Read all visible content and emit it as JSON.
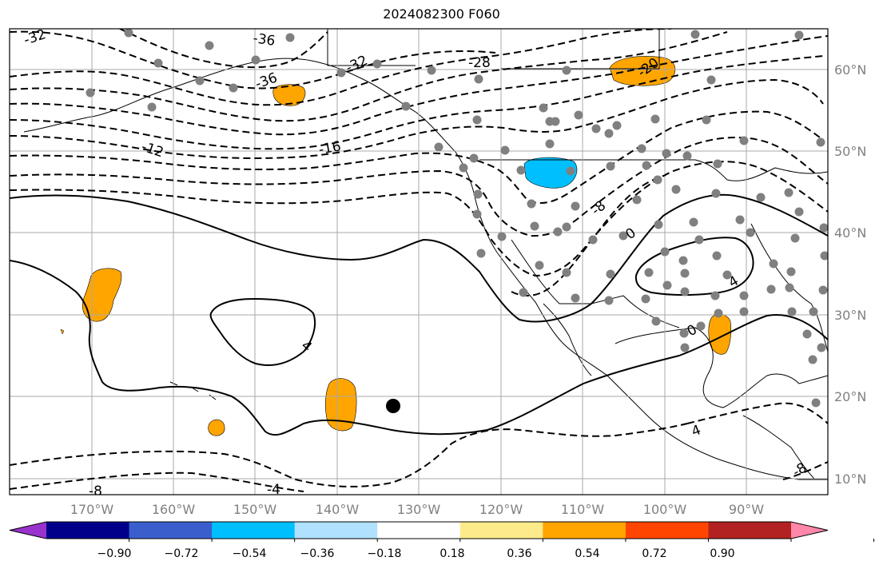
{
  "title": "2024082300 F060",
  "map": {
    "lon_labels": [
      "170°W",
      "160°W",
      "150°W",
      "140°W",
      "130°W",
      "120°W",
      "110°W",
      "100°W",
      "90°W"
    ],
    "lat_labels": [
      "60°N",
      "50°N",
      "40°N",
      "30°N",
      "20°N",
      "10°N"
    ],
    "contour_labels": [
      "-32",
      "-36",
      "-32",
      "-36",
      "-28",
      "-20",
      "-12",
      "-16",
      "-8",
      "0",
      "4",
      "0",
      "4",
      "4",
      "-8",
      "-4",
      "-8"
    ],
    "colors": {
      "contour": "#000000",
      "grid": "#a9a9a9",
      "station": "#808080",
      "positive_anomaly": "#ffa500",
      "negative_anomaly": "#00bfff",
      "marker": "#000000"
    }
  },
  "colorbar": {
    "ticks": [
      "−0.90",
      "−0.72",
      "−0.54",
      "−0.36",
      "−0.18",
      "0.18",
      "0.36",
      "0.54",
      "0.72",
      "0.90"
    ],
    "colors": [
      "#9932cc",
      "#00008b",
      "#3a5fcd",
      "#00bfff",
      "#b0e2ff",
      "#ffffff",
      "#fdeb8b",
      "#ffa500",
      "#ff4500",
      "#b22222",
      "#ff88aa"
    ]
  }
}
